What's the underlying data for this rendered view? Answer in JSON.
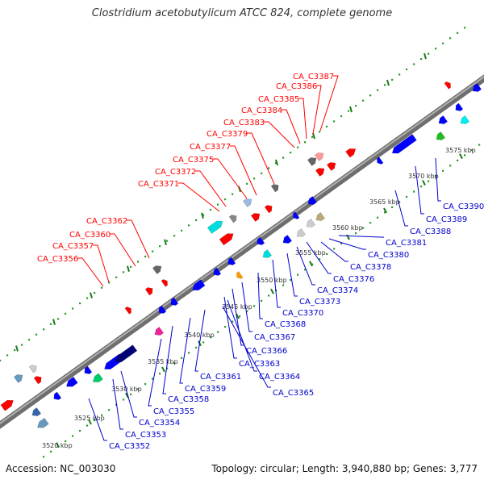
{
  "title": "Clostridium acetobutylicum ATCC 824, complete genome",
  "footer": {
    "accession": "Accession: NC_003030",
    "summary": "Topology: circular; Length: 3,940,880 bp; Genes: 3,777"
  },
  "colors": {
    "forward_label": "#ff0000",
    "reverse_label": "#0000cc",
    "backbone": "#888888",
    "dots": "#2a9a2a"
  },
  "genome_map": {
    "ticks": [
      "3520 kbp",
      "3525 kbp",
      "3530 kbp",
      "3535 kbp",
      "3540 kbp",
      "3545 kbp",
      "3550 kbp",
      "3555 kbp",
      "3560 kbp",
      "3565 kbp",
      "3570 kbp",
      "3575 kbp"
    ],
    "forward_labels": [
      "CA_C3387",
      "CA_C3386",
      "CA_C3385",
      "CA_C3384",
      "CA_C3383",
      "CA_C3379",
      "CA_C3377",
      "CA_C3375",
      "CA_C3372",
      "CA_C3371",
      "CA_C3362",
      "CA_C3360",
      "CA_C3357",
      "CA_C3356"
    ],
    "reverse_labels": [
      "CA_C3390",
      "CA_C3389",
      "CA_C3388",
      "CA_C3381",
      "CA_C3380",
      "CA_C3378",
      "CA_C3376",
      "CA_C3374",
      "CA_C3373",
      "CA_C3370",
      "CA_C3368",
      "CA_C3367",
      "CA_C3366",
      "CA_C3363",
      "CA_C3364",
      "CA_C3365",
      "CA_C3361",
      "CA_C3359",
      "CA_C3358",
      "CA_C3355",
      "CA_C3354",
      "CA_C3353",
      "CA_C3352"
    ]
  }
}
